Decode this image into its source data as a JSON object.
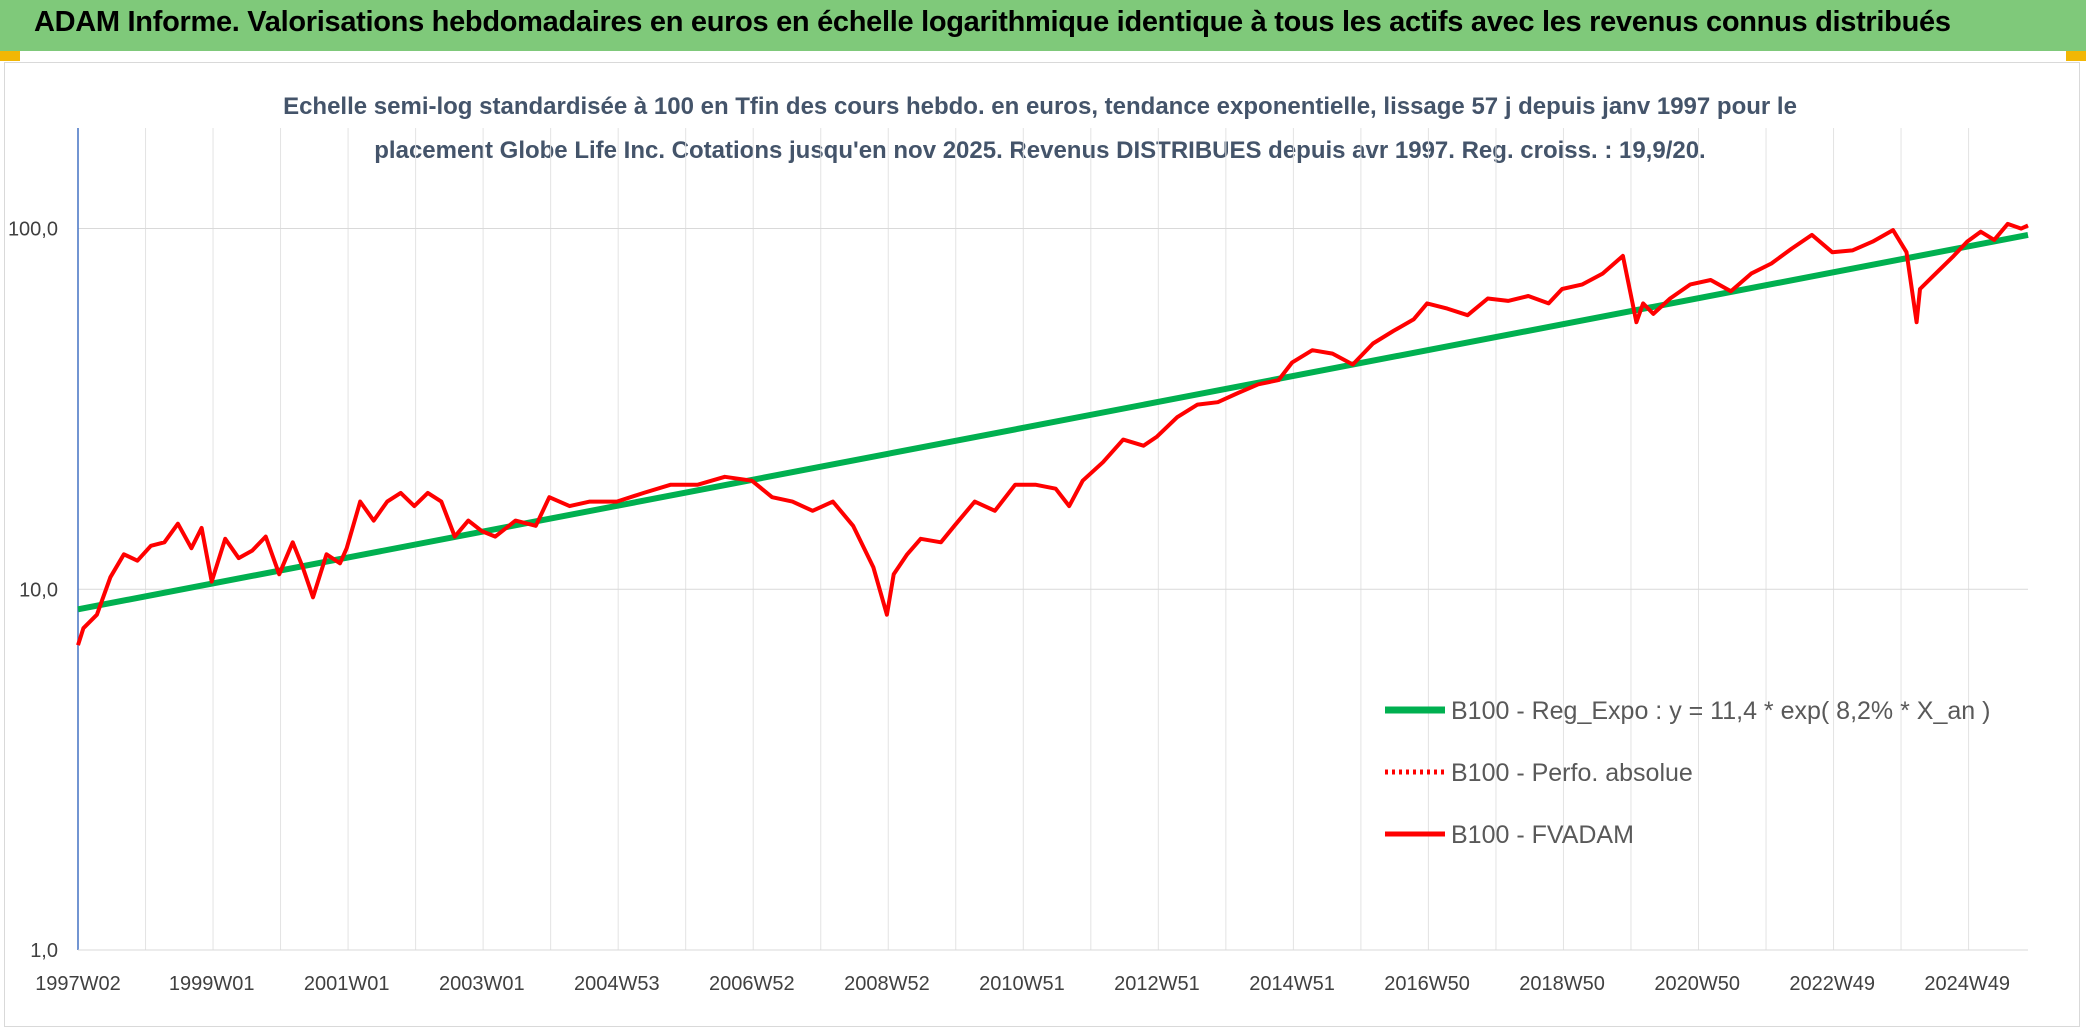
{
  "header": {
    "title": "ADAM Informe. Valorisations hebdomadaires en euros en échelle logarithmique identique à tous les actifs avec les revenus connus distribués"
  },
  "colors": {
    "header_bg": "#7fc97a",
    "corner_accent": "#f2b705",
    "regression": "#00b050",
    "series": "#ff0000",
    "subtitle": "#44546a"
  },
  "chart_data": {
    "type": "line",
    "title_lines": [
      "Echelle semi-log standardisée à 100 en Tfin des cours hebdo. en euros, tendance exponentielle, lissage 57 j depuis janv 1997 pour le",
      "placement Globe Life Inc. Cotations jusqu'en nov 2025. Revenus DISTRIBUES depuis avr 1997. Reg. croiss. : 19,9/20."
    ],
    "y_scale": "log",
    "ylim": [
      1,
      190
    ],
    "y_ticks": [
      {
        "value": 1,
        "label": "1,0"
      },
      {
        "value": 10,
        "label": "10,0"
      },
      {
        "value": 100,
        "label": "100,0"
      }
    ],
    "xlim": [
      1997.02,
      2025.9
    ],
    "x_ticks": [
      {
        "value": 1997.02,
        "label": "1997W02"
      },
      {
        "value": 1999.0,
        "label": "1999W01"
      },
      {
        "value": 2001.0,
        "label": "2001W01"
      },
      {
        "value": 2003.0,
        "label": "2003W01"
      },
      {
        "value": 2005.0,
        "label": "2004W53"
      },
      {
        "value": 2007.0,
        "label": "2006W52"
      },
      {
        "value": 2009.0,
        "label": "2008W52"
      },
      {
        "value": 2011.0,
        "label": "2010W51"
      },
      {
        "value": 2013.0,
        "label": "2012W51"
      },
      {
        "value": 2015.0,
        "label": "2014W51"
      },
      {
        "value": 2017.0,
        "label": "2016W50"
      },
      {
        "value": 2019.0,
        "label": "2018W50"
      },
      {
        "value": 2021.0,
        "label": "2020W50"
      },
      {
        "value": 2023.0,
        "label": "2022W49"
      },
      {
        "value": 2025.0,
        "label": "2024W49"
      }
    ],
    "grid": true,
    "legend_position": "bottom-right",
    "series": [
      {
        "name": "B100 - Reg_Expo : y = 11,4 * exp( 8,2% *  X_an )",
        "style": "solid-green",
        "x": [
          1997.02,
          2025.9
        ],
        "y": [
          8.8,
          96
        ]
      },
      {
        "name": "B100 - Perfo. absolue",
        "style": "dotted-red",
        "x": [],
        "y": []
      },
      {
        "name": "B100 - FVADAM",
        "style": "solid-red",
        "x": [
          1997.02,
          1997.1,
          1997.3,
          1997.5,
          1997.7,
          1997.9,
          1998.1,
          1998.3,
          1998.5,
          1998.7,
          1998.85,
          1999.0,
          1999.2,
          1999.4,
          1999.6,
          1999.8,
          2000.0,
          2000.2,
          2000.35,
          2000.5,
          2000.7,
          2000.9,
          2001.0,
          2001.2,
          2001.4,
          2001.6,
          2001.8,
          2002.0,
          2002.2,
          2002.4,
          2002.6,
          2002.8,
          2003.0,
          2003.2,
          2003.5,
          2003.8,
          2004.0,
          2004.3,
          2004.6,
          2005.0,
          2005.4,
          2005.8,
          2006.2,
          2006.6,
          2007.0,
          2007.3,
          2007.6,
          2007.9,
          2008.2,
          2008.5,
          2008.8,
          2009.0,
          2009.1,
          2009.3,
          2009.5,
          2009.8,
          2010.0,
          2010.3,
          2010.6,
          2010.9,
          2011.2,
          2011.5,
          2011.7,
          2011.9,
          2012.2,
          2012.5,
          2012.8,
          2013.0,
          2013.3,
          2013.6,
          2013.9,
          2014.2,
          2014.5,
          2014.8,
          2015.0,
          2015.3,
          2015.6,
          2015.9,
          2016.2,
          2016.5,
          2016.8,
          2017.0,
          2017.3,
          2017.6,
          2017.9,
          2018.2,
          2018.5,
          2018.8,
          2019.0,
          2019.3,
          2019.6,
          2019.9,
          2020.1,
          2020.2,
          2020.35,
          2020.6,
          2020.9,
          2021.2,
          2021.5,
          2021.8,
          2022.1,
          2022.4,
          2022.7,
          2023.0,
          2023.3,
          2023.6,
          2023.9,
          2024.1,
          2024.25,
          2024.3,
          2024.5,
          2024.8,
          2025.0,
          2025.2,
          2025.4,
          2025.6,
          2025.8,
          2025.9
        ],
        "y": [
          7.0,
          7.8,
          8.5,
          10.8,
          12.5,
          12.0,
          13.2,
          13.5,
          15.2,
          13.0,
          14.8,
          10.5,
          13.8,
          12.2,
          12.8,
          14.0,
          11.0,
          13.5,
          11.5,
          9.5,
          12.5,
          11.8,
          13.0,
          17.5,
          15.5,
          17.5,
          18.5,
          17.0,
          18.5,
          17.5,
          14.0,
          15.5,
          14.5,
          14.0,
          15.5,
          15.0,
          18.0,
          17.0,
          17.5,
          17.5,
          18.5,
          19.5,
          19.5,
          20.5,
          20.0,
          18.0,
          17.5,
          16.5,
          17.5,
          15.0,
          11.5,
          8.5,
          11.0,
          12.5,
          13.8,
          13.5,
          15.0,
          17.5,
          16.5,
          19.5,
          19.5,
          19.0,
          17.0,
          20.0,
          22.5,
          26.0,
          25.0,
          26.5,
          30.0,
          32.5,
          33.0,
          35.0,
          37.0,
          38.0,
          42.5,
          46.0,
          45.0,
          42.0,
          48.0,
          52.0,
          56.0,
          62.0,
          60.0,
          57.5,
          64.0,
          63.0,
          65.0,
          62.0,
          68.0,
          70.0,
          75.0,
          84.0,
          55.0,
          62.0,
          58.0,
          64.0,
          70.0,
          72.0,
          67.0,
          75.0,
          80.0,
          88.0,
          96.0,
          86.0,
          87.0,
          92.0,
          99.0,
          86.0,
          55.0,
          68.0,
          74.0,
          84.0,
          92.0,
          98.0,
          93.0,
          103.0,
          100.0,
          102.0
        ]
      }
    ]
  }
}
